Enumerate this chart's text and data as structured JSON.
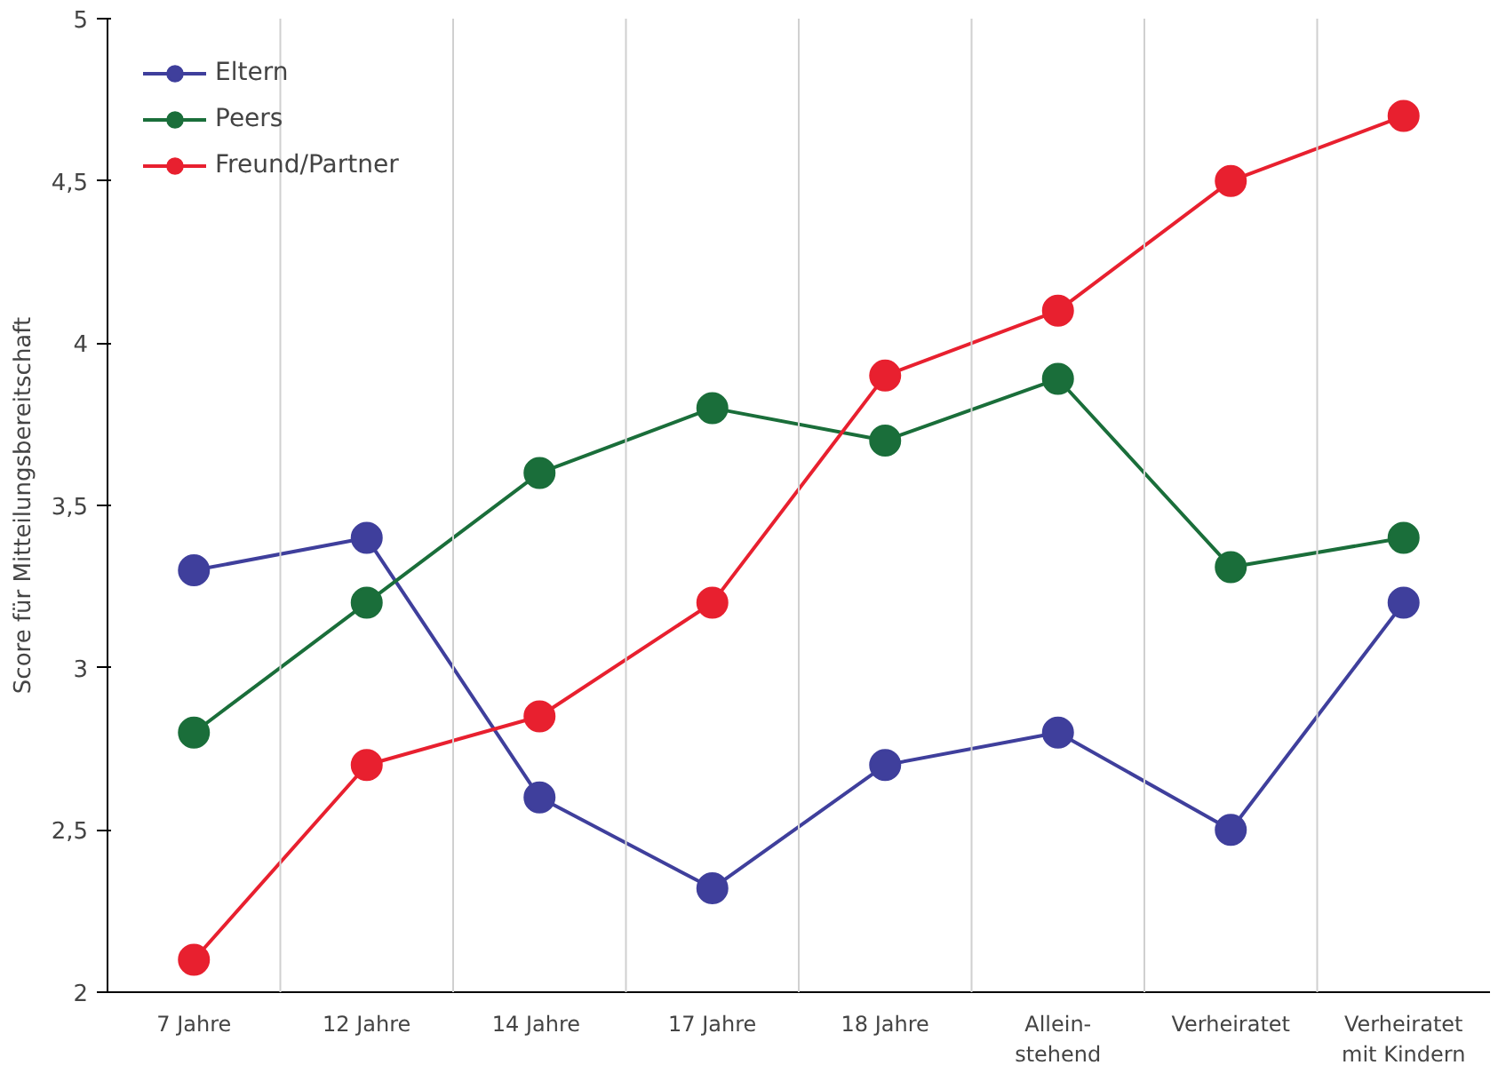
{
  "chart_data": {
    "type": "line",
    "ylabel": "Score für Mitteilungsbereitschaft",
    "categories": [
      "7 Jahre",
      "12 Jahre",
      "14  Jahre",
      "17 Jahre",
      "18 Jahre",
      "Allein-\nstehend",
      "Verheiratet",
      "Verheiratet\nmit Kindern"
    ],
    "series": [
      {
        "name": "Eltern",
        "color": "#3f3f9c",
        "values": [
          3.3,
          3.4,
          2.6,
          2.32,
          2.7,
          2.8,
          2.5,
          3.2
        ]
      },
      {
        "name": "Peers",
        "color": "#1a6e3a",
        "values": [
          2.8,
          3.2,
          3.6,
          3.8,
          3.7,
          3.89,
          3.31,
          3.4
        ]
      },
      {
        "name": "Freund/Partner",
        "color": "#e8202f",
        "values": [
          2.1,
          2.7,
          2.85,
          3.2,
          3.9,
          4.1,
          4.5,
          4.7
        ]
      }
    ],
    "ylim": [
      2,
      5
    ],
    "yticks": [
      2,
      {
        "value": 2.5,
        "label": "2,5"
      },
      3,
      {
        "value": 3.5,
        "label": "3,5"
      },
      4,
      {
        "value": 4.5,
        "label": "4,5"
      },
      5
    ],
    "grid": "x",
    "legend": "top left",
    "marker": "circle",
    "line_style": "solid"
  }
}
